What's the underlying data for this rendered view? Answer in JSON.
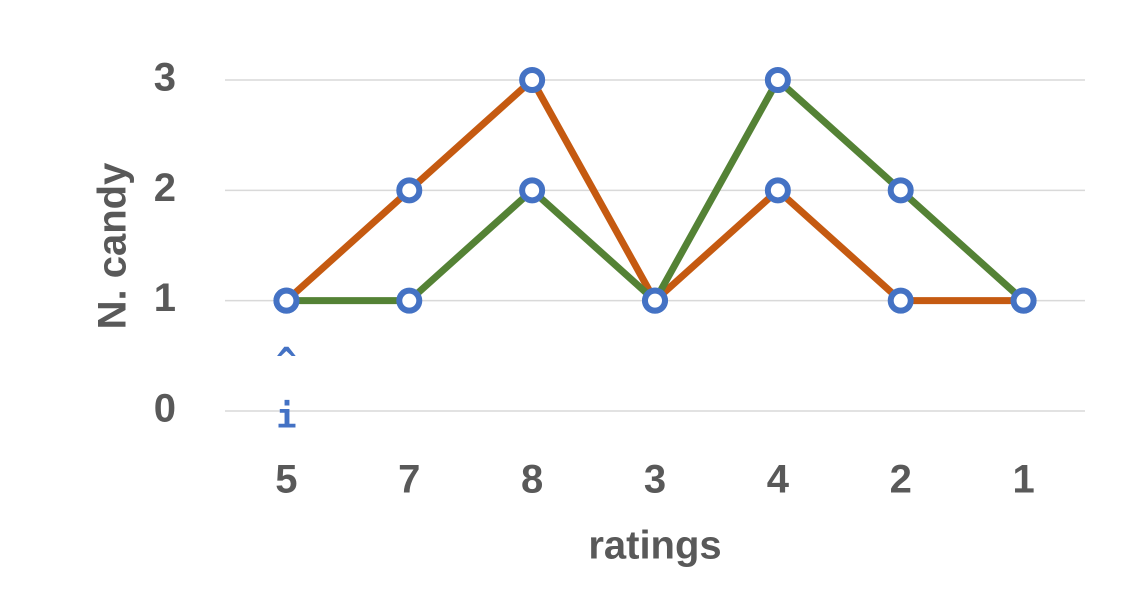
{
  "chart_data": {
    "type": "line",
    "x_label": "ratings",
    "y_label": "N. candy",
    "categories": [
      "5",
      "7",
      "8",
      "3",
      "4",
      "2",
      "1"
    ],
    "series": [
      {
        "color": "#c55a11",
        "values": [
          1,
          2,
          3,
          1,
          2,
          1,
          1
        ]
      },
      {
        "color": "#548235",
        "values": [
          1,
          1,
          2,
          1,
          3,
          2,
          1
        ]
      }
    ],
    "marker_color": "#4472c4",
    "ylim": [
      0,
      3
    ],
    "yticks": [
      0,
      1,
      2,
      3
    ],
    "grid": true,
    "annotations": [
      {
        "text": "^"
      },
      {
        "text": "i"
      }
    ]
  }
}
